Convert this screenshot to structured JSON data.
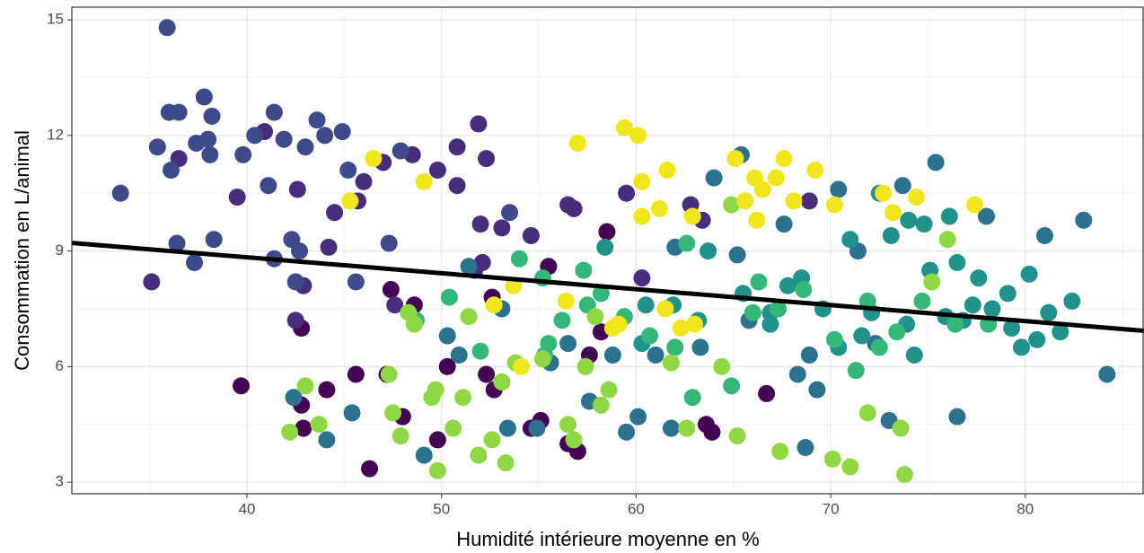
{
  "chart_data": {
    "type": "scatter",
    "x_label": "Humidité intérieure moyenne en %",
    "y_label": "Consommation en L/animal",
    "xlim": [
      31.0,
      86.1
    ],
    "ylim": [
      2.7,
      15.33
    ],
    "xticks": [
      40,
      50,
      60,
      70,
      80
    ],
    "yticks": [
      3,
      6,
      9,
      12,
      15
    ],
    "grid": true,
    "series": [
      {
        "color": "#440154",
        "x": [
          39.7,
          42.8,
          42.9,
          44.1,
          45.6,
          46.3,
          47.2,
          48.0,
          49.8,
          50.3,
          52.3,
          52.7,
          54.6,
          55.1,
          55.5,
          56.5,
          57.0,
          57.6,
          58.2,
          58.5,
          63.6,
          63.9,
          66.7,
          42.8,
          47.4,
          48.6,
          52.6
        ],
        "y": [
          5.5,
          5.0,
          4.4,
          5.4,
          5.8,
          3.35,
          5.8,
          4.7,
          4.1,
          6.0,
          5.8,
          5.4,
          4.4,
          4.6,
          8.6,
          4.0,
          3.8,
          6.3,
          6.9,
          9.5,
          4.5,
          4.3,
          5.3,
          7.0,
          8.0,
          7.6,
          7.8
        ]
      },
      {
        "color": "#472d7b",
        "x": [
          35.1,
          36.5,
          39.5,
          40.9,
          42.6,
          42.9,
          44.2,
          44.5,
          45.7,
          46.0,
          47.0,
          47.6,
          48.5,
          49.8,
          50.8,
          51.9,
          52.3,
          52.0,
          52.1,
          53.1,
          54.6,
          56.5,
          56.8,
          59.5,
          60.3,
          62.8,
          63.4,
          68.9,
          42.5,
          50.8,
          51.7
        ],
        "y": [
          8.2,
          11.4,
          10.4,
          12.1,
          10.6,
          8.1,
          9.1,
          10.0,
          10.3,
          10.8,
          11.3,
          7.6,
          11.5,
          11.1,
          11.7,
          12.3,
          11.4,
          9.7,
          8.7,
          9.6,
          9.4,
          10.2,
          10.1,
          10.5,
          8.3,
          10.2,
          9.8,
          10.3,
          7.2,
          10.7,
          8.5
        ]
      },
      {
        "color": "#3e4a89",
        "x": [
          33.5,
          35.4,
          35.9,
          36.0,
          36.1,
          36.4,
          36.5,
          37.4,
          37.8,
          38.0,
          38.2,
          38.1,
          38.3,
          39.8,
          40.4,
          41.1,
          41.4,
          41.9,
          42.3,
          43.0,
          43.6,
          44.0,
          44.9,
          45.2,
          47.3,
          47.9,
          37.3,
          41.4,
          42.5,
          42.7,
          45.6,
          53.5
        ],
        "y": [
          10.5,
          11.7,
          14.8,
          12.6,
          11.1,
          9.2,
          12.6,
          11.8,
          13.0,
          11.9,
          12.5,
          11.5,
          9.3,
          11.5,
          12.0,
          10.7,
          12.6,
          11.9,
          9.3,
          11.7,
          12.4,
          12.0,
          12.1,
          11.1,
          9.2,
          11.6,
          8.7,
          8.8,
          8.2,
          9.0,
          8.2,
          10.0
        ]
      },
      {
        "color": "#2c728e",
        "x": [
          42.4,
          44.1,
          45.4,
          49.1,
          50.3,
          50.9,
          51.4,
          53.1,
          53.4,
          54.9,
          55.6,
          56.5,
          57.6,
          58.8,
          59.5,
          60.1,
          61.0,
          61.8,
          62.0,
          63.3,
          64.0,
          65.4,
          65.8,
          67.6,
          68.7,
          68.9,
          69.3,
          70.4,
          71.4,
          72.3,
          73.0,
          73.7,
          75.4,
          76.5,
          78.0,
          81.0,
          83.0,
          84.2,
          65.2,
          68.3
        ],
        "y": [
          5.2,
          4.1,
          4.8,
          3.7,
          6.8,
          6.3,
          8.6,
          7.5,
          4.4,
          4.4,
          6.1,
          6.6,
          5.1,
          6.3,
          4.3,
          4.7,
          6.3,
          4.4,
          9.1,
          6.5,
          10.9,
          11.5,
          7.2,
          9.7,
          3.9,
          6.3,
          5.4,
          10.6,
          9.0,
          6.6,
          4.6,
          10.7,
          11.3,
          4.7,
          9.9,
          9.4,
          9.8,
          5.8,
          8.9,
          5.8
        ]
      },
      {
        "color": "#21918c",
        "x": [
          58.4,
          60.5,
          63.7,
          65.5,
          66.9,
          67.8,
          68.5,
          70.4,
          71.0,
          72.5,
          73.1,
          74.0,
          74.8,
          75.1,
          75.9,
          76.1,
          76.5,
          77.3,
          78.3,
          79.1,
          79.8,
          80.2,
          80.6,
          81.2,
          81.8,
          82.4,
          74.3,
          72.1,
          66.9,
          63.2,
          60.3,
          71.6,
          77.6,
          79.3,
          69.6,
          73.9,
          76.8,
          61.9
        ],
        "y": [
          9.1,
          7.6,
          9.0,
          7.9,
          7.4,
          8.1,
          8.3,
          6.5,
          9.3,
          10.5,
          9.4,
          9.8,
          9.7,
          8.5,
          7.3,
          9.9,
          8.7,
          7.6,
          7.5,
          7.9,
          6.5,
          8.4,
          6.7,
          7.4,
          6.9,
          7.7,
          6.3,
          7.4,
          7.1,
          7.2,
          6.6,
          6.8,
          8.3,
          7.0,
          7.5,
          7.1,
          7.2,
          7.6
        ]
      },
      {
        "color": "#35b779",
        "x": [
          48.7,
          50.4,
          52.0,
          55.5,
          56.2,
          57.5,
          58.2,
          59.4,
          60.7,
          62.0,
          62.6,
          64.9,
          66.0,
          67.3,
          68.6,
          70.2,
          71.3,
          71.9,
          73.4,
          74.7,
          76.4,
          78.1,
          57.3,
          55.2,
          54.0,
          62.9,
          66.3,
          55.3,
          72.5
        ],
        "y": [
          7.2,
          7.8,
          6.4,
          6.6,
          7.2,
          7.6,
          7.9,
          7.3,
          6.8,
          6.5,
          9.2,
          5.5,
          7.4,
          7.5,
          8.0,
          6.7,
          5.9,
          7.7,
          6.9,
          7.7,
          7.1,
          7.1,
          8.5,
          8.3,
          8.8,
          5.2,
          8.2,
          6.3,
          6.5
        ]
      },
      {
        "color": "#8fd744",
        "x": [
          42.2,
          43.0,
          43.7,
          47.5,
          47.9,
          48.3,
          49.5,
          49.7,
          49.8,
          50.6,
          51.1,
          51.4,
          51.9,
          52.6,
          53.1,
          53.3,
          53.8,
          55.2,
          56.5,
          56.8,
          57.4,
          58.6,
          58.2,
          61.8,
          62.6,
          64.4,
          65.2,
          67.4,
          70.1,
          71.0,
          71.9,
          73.6,
          73.8,
          75.2,
          76.0,
          64.9,
          47.3,
          48.6,
          57.9
        ],
        "y": [
          4.3,
          5.5,
          4.5,
          4.8,
          4.2,
          7.4,
          5.2,
          5.4,
          3.3,
          4.4,
          5.2,
          7.3,
          3.7,
          4.1,
          5.6,
          3.5,
          6.1,
          6.2,
          4.5,
          4.1,
          6.0,
          5.4,
          5.0,
          6.1,
          4.4,
          6.0,
          4.2,
          3.8,
          3.6,
          3.4,
          4.8,
          4.4,
          3.2,
          8.2,
          9.3,
          10.2,
          5.8,
          7.1,
          7.3
        ]
      },
      {
        "color": "#f1e51d",
        "x": [
          45.3,
          46.5,
          49.1,
          52.7,
          53.7,
          54.1,
          56.4,
          57.0,
          59.4,
          60.1,
          60.3,
          60.3,
          61.2,
          61.6,
          62.3,
          62.9,
          63.0,
          65.1,
          65.6,
          66.1,
          66.2,
          66.5,
          67.2,
          67.6,
          68.1,
          69.2,
          70.2,
          72.7,
          73.2,
          74.4,
          77.4,
          58.8,
          59.1,
          61.5
        ],
        "y": [
          10.3,
          11.4,
          10.8,
          7.6,
          8.1,
          6.0,
          7.7,
          11.8,
          12.2,
          12.0,
          10.8,
          9.9,
          10.1,
          11.1,
          7.0,
          9.9,
          7.1,
          11.4,
          10.3,
          10.9,
          9.8,
          10.6,
          10.9,
          11.4,
          10.3,
          11.1,
          10.2,
          10.5,
          10.0,
          10.4,
          10.2,
          7.0,
          7.1,
          7.5
        ]
      }
    ],
    "trend_line": {
      "color": "#000000",
      "x": [
        31.0,
        86.1
      ],
      "y": [
        9.21,
        6.93
      ]
    }
  }
}
